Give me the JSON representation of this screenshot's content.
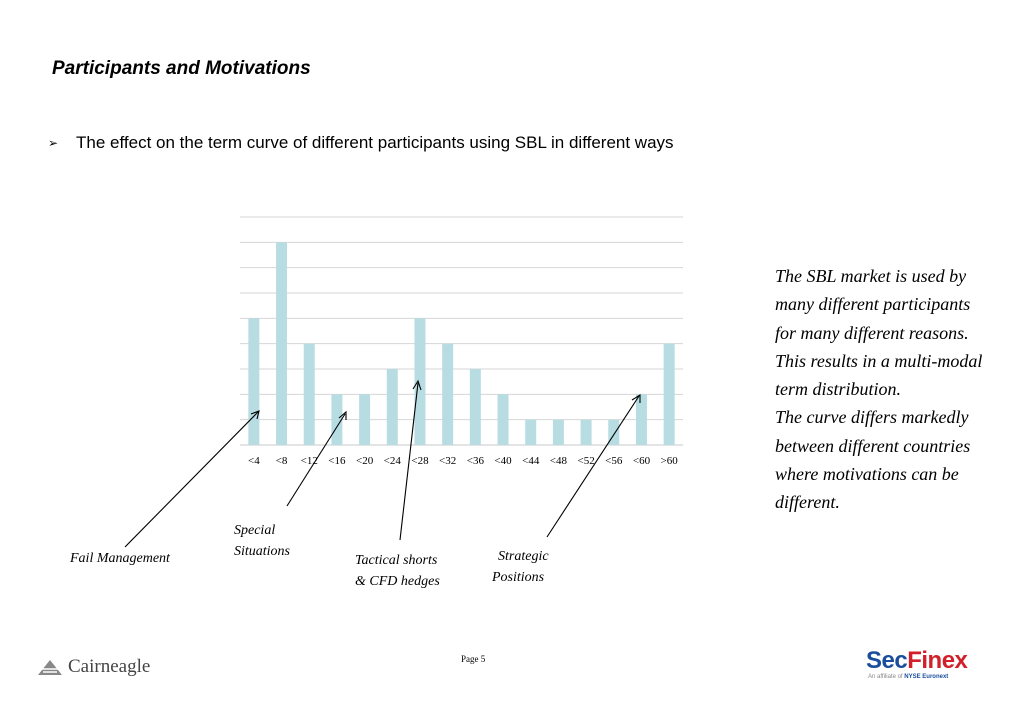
{
  "title": "Participants and Motivations",
  "bullet": {
    "marker": "➢",
    "text": "The effect on the term curve of different participants using SBL in different ways"
  },
  "chart_data": {
    "type": "bar",
    "categories": [
      "<4",
      "<8",
      "<12",
      "<16",
      "<20",
      "<24",
      "<28",
      "<32",
      "<36",
      "<40",
      "<44",
      "<48",
      "<52",
      "<56",
      "<60",
      ">60"
    ],
    "values": [
      5,
      8,
      4,
      2,
      2,
      3,
      5,
      4,
      3,
      2,
      1,
      1,
      1,
      1,
      2,
      4
    ],
    "ylim": [
      0,
      9
    ],
    "grid": true,
    "legend": "none",
    "bar_color": "#b7dde3",
    "title": "",
    "xlabel": "",
    "ylabel": ""
  },
  "annotations": {
    "fail_management": "Fail Management",
    "special_situations": [
      "Special",
      "Situations"
    ],
    "tactical": [
      "Tactical shorts",
      "& CFD hedges"
    ],
    "strategic": [
      "Strategic",
      "Positions"
    ]
  },
  "side_text": [
    "The SBL market is used by many different participants for many different reasons.  This results in a multi-modal term distribution.",
    "The curve differs markedly between different countries where motivations can be different."
  ],
  "footer": {
    "page": "Page 5",
    "left_logo": "Cairneagle",
    "right_logo": {
      "sec": "Sec",
      "finex": "Finex",
      "affiliate_prefix": "An affiliate of",
      "affiliate_name": "NYSE Euronext"
    }
  }
}
